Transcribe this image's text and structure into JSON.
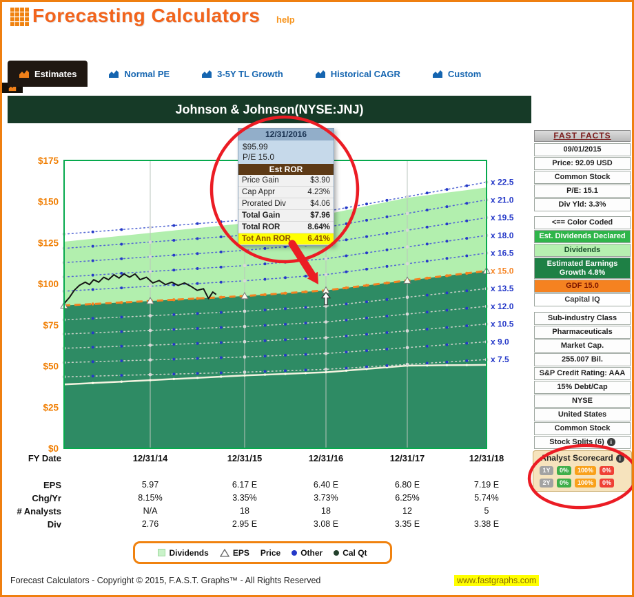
{
  "header": {
    "title": "Forecasting Calculators",
    "help_label": "help"
  },
  "tabs": [
    {
      "label": "Estimates",
      "active": true
    },
    {
      "label": "Normal PE",
      "active": false
    },
    {
      "label": "3-5Y TL Growth",
      "active": false
    },
    {
      "label": "Historical CAGR",
      "active": false
    },
    {
      "label": "Custom",
      "active": false
    }
  ],
  "chart_data": {
    "type": "line",
    "title": "Johnson & Johnson(NYSE:JNJ)",
    "ylim": [
      0,
      175
    ],
    "y_tick_step": 25,
    "y_tick_labels": [
      "$0",
      "$25",
      "$50",
      "$75",
      "$100",
      "$125",
      "$150",
      "$175"
    ],
    "x_year_labels": [
      "12/31/14",
      "12/31/15",
      "12/31/16",
      "12/31/17",
      "12/31/18"
    ],
    "eps": [
      5.97,
      6.17,
      6.4,
      6.8,
      7.19
    ],
    "dividends": [
      2.76,
      2.95,
      3.08,
      3.35,
      3.38
    ],
    "pe_lines": [
      {
        "m": 7.5,
        "label": "x 7.5"
      },
      {
        "m": 9.0,
        "label": "x 9.0"
      },
      {
        "m": 10.5,
        "label": "x 10.5"
      },
      {
        "m": 12.0,
        "label": "x 12.0"
      },
      {
        "m": 13.5,
        "label": "x 13.5"
      },
      {
        "m": 16.5,
        "label": "x 16.5"
      },
      {
        "m": 18.0,
        "label": "x 18.0"
      },
      {
        "m": 19.5,
        "label": "x 19.5"
      },
      {
        "m": 21.0,
        "label": "x 21.0"
      },
      {
        "m": 22.5,
        "label": "x 22.5"
      }
    ],
    "gdf_line": {
      "m": 15.0,
      "label": "x 15.0"
    },
    "price_series": [
      [
        0,
        88
      ],
      [
        0.012,
        91.5
      ],
      [
        0.024,
        96
      ],
      [
        0.036,
        99
      ],
      [
        0.05,
        101
      ],
      [
        0.06,
        99.5
      ],
      [
        0.07,
        102.5
      ],
      [
        0.082,
        101
      ],
      [
        0.094,
        104
      ],
      [
        0.105,
        102.5
      ],
      [
        0.118,
        105.5
      ],
      [
        0.13,
        103.5
      ],
      [
        0.142,
        106
      ],
      [
        0.155,
        104
      ],
      [
        0.168,
        106
      ],
      [
        0.18,
        102.5
      ],
      [
        0.195,
        104
      ],
      [
        0.21,
        100.5
      ],
      [
        0.225,
        102
      ],
      [
        0.24,
        99.5
      ],
      [
        0.255,
        101
      ],
      [
        0.27,
        99
      ],
      [
        0.285,
        100.5
      ],
      [
        0.3,
        98.5
      ],
      [
        0.315,
        96
      ],
      [
        0.33,
        97
      ],
      [
        0.342,
        91
      ],
      [
        0.352,
        95
      ],
      [
        0.36,
        93.5
      ]
    ],
    "colors": {
      "dark_area": "#2e8b64",
      "light_area": "#b2efae",
      "gdf": "#f58220",
      "pe_label": "#2438c8",
      "price": "#151515",
      "plot_border": "#06a94d",
      "axis_label": "#f07d00",
      "grid": "#b9c4bc"
    }
  },
  "tooltip": {
    "date": "12/31/2016",
    "price": "$95.99",
    "pe": "P/E 15.0",
    "section": "Est ROR",
    "rows": [
      {
        "label": "Price Gain",
        "value": "$3.90"
      },
      {
        "label": "Cap Appr",
        "value": "4.23%"
      },
      {
        "label": "Prorated Div",
        "value": "$4.06"
      },
      {
        "label": "Total Gain",
        "value": "$7.96"
      },
      {
        "label": "Total ROR",
        "value": "8.64%"
      },
      {
        "label": "Tot Ann ROR",
        "value": "6.41%"
      }
    ]
  },
  "sidebar": {
    "fast_facts": {
      "header": "FAST FACTS",
      "rows": [
        "09/01/2015",
        "Price: 92.09 USD",
        "Common Stock",
        "P/E: 15.1",
        "Div Yld: 3.3%"
      ]
    },
    "color_coded": {
      "header": "<== Color Coded",
      "items": [
        {
          "label": "Est. Dividends Declared",
          "bg": "#2fb54a",
          "fg": "#ffffff"
        },
        {
          "label": "Dividends",
          "bg": "#b6f0b0",
          "fg": "#17502a"
        },
        {
          "label": "Estimated Earnings Growth 4.8%",
          "bg": "#1e8045",
          "fg": "#ffffff"
        },
        {
          "label": "GDF 15.0",
          "bg": "#f58220",
          "fg": "#7a1500"
        },
        {
          "label": "Capital IQ",
          "bg": "#ffffff",
          "fg": "#333333"
        }
      ]
    },
    "info": [
      "Sub-industry Class",
      "Pharmaceuticals",
      "Market Cap.",
      "255.007 Bil.",
      "S&P Credit Rating: AAA",
      "15% Debt/Cap",
      "NYSE",
      "United States",
      "Common Stock",
      "Stock Splits (6)"
    ],
    "scorecard": {
      "title": "Analyst Scorecard",
      "rows": [
        {
          "period": "1Y",
          "values": [
            "0%",
            "100%",
            "0%"
          ]
        },
        {
          "period": "2Y",
          "values": [
            "0%",
            "100%",
            "0%"
          ]
        }
      ],
      "colors": {
        "period": "#a2a2a2",
        "good": "#3fae4a",
        "mid": "#f9a11b",
        "bad": "#ef4136"
      }
    }
  },
  "table": {
    "row_labels": [
      "FY Date",
      "EPS",
      "Chg/Yr",
      "# Analysts",
      "Div"
    ],
    "columns": [
      "12/31/14",
      "12/31/15",
      "12/31/16",
      "12/31/17",
      "12/31/18"
    ],
    "eps": [
      "5.97",
      "6.17 E",
      "6.40 E",
      "6.80 E",
      "7.19 E"
    ],
    "chg": [
      "8.15%",
      "3.35%",
      "3.73%",
      "6.25%",
      "5.74%"
    ],
    "analysts": [
      "N/A",
      "18",
      "18",
      "12",
      "5"
    ],
    "div": [
      "2.76",
      "2.95 E",
      "3.08 E",
      "3.35 E",
      "3.38 E"
    ]
  },
  "legend": {
    "items": [
      "Dividends",
      "EPS",
      "Price",
      "Other",
      "Cal Qt"
    ]
  },
  "footer": {
    "copyright": "Forecast Calculators - Copyright © 2015, F.A.S.T. Graphs™ - All Rights Reserved",
    "link": "www.fastgraphs.com"
  }
}
